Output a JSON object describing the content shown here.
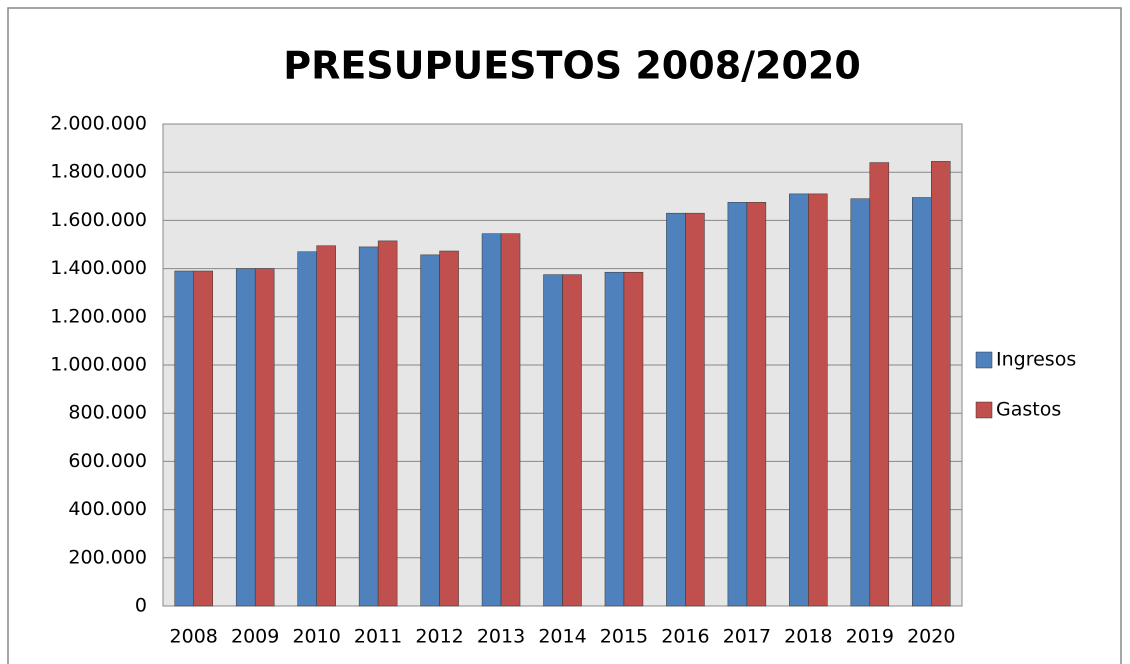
{
  "chart_data": {
    "type": "bar",
    "title": "PRESUPUESTOS 2008/2020",
    "categories": [
      "2008",
      "2009",
      "2010",
      "2011",
      "2012",
      "2013",
      "2014",
      "2015",
      "2016",
      "2017",
      "2018",
      "2019",
      "2020"
    ],
    "series": [
      {
        "name": "Ingresos",
        "color": "#4f81bd",
        "values": [
          1390000,
          1400000,
          1470000,
          1490000,
          1457000,
          1545000,
          1375000,
          1385000,
          1630000,
          1675000,
          1710000,
          1690000,
          1695000
        ]
      },
      {
        "name": "Gastos",
        "color": "#c0504d",
        "values": [
          1390000,
          1400000,
          1495000,
          1515000,
          1473000,
          1545000,
          1375000,
          1385000,
          1630000,
          1675000,
          1710000,
          1840000,
          1845000
        ]
      }
    ],
    "ylim": [
      0,
      2000000
    ],
    "yticks": [
      0,
      {
        "value": 200000,
        "label": "200.000"
      },
      {
        "value": 400000,
        "label": "400.000"
      },
      {
        "value": 600000,
        "label": "600.000"
      },
      {
        "value": 800000,
        "label": "800.000"
      },
      {
        "value": 1000000,
        "label": "1.000.000"
      },
      {
        "value": 1200000,
        "label": "1.200.000"
      },
      {
        "value": 1400000,
        "label": "1.400.000"
      },
      {
        "value": 1600000,
        "label": "1.600.000"
      },
      {
        "value": 1800000,
        "label": "1.800.000"
      },
      {
        "value": 2000000,
        "label": "2.000.000"
      }
    ],
    "grid": true,
    "legend": "right"
  }
}
